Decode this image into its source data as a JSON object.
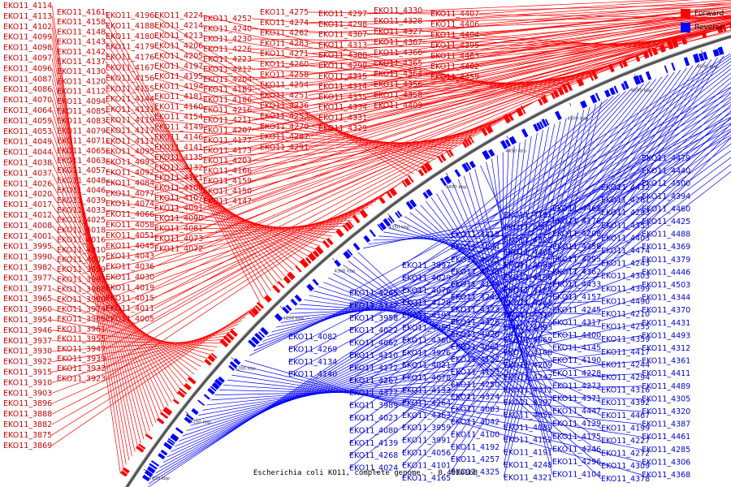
{
  "colors": {
    "forward": "#ff0000",
    "reverse": "#0000ff",
    "backbone": "#555555"
  },
  "legend": {
    "forward_label": "Forward",
    "reverse_label": "Reverse"
  },
  "caption": "Escherichia coli KO11, complete genome. - 0.4920168",
  "ticks": [
    "4100 kbp",
    "4150 kbp",
    "4200 kbp",
    "4250 kbp",
    "4300 kbp",
    "4350 kbp",
    "4400 kbp",
    "4450 kbp",
    "4500 kbp",
    "4550 kbp",
    "4600 kbp",
    "4650 kbp",
    "4700 kbp",
    "4750 kbp"
  ],
  "forward_labels": [
    "EKO11_4114",
    "EKO11_4113",
    "EKO11_4102",
    "EKO11_4099",
    "EKO11_4098",
    "EKO11_4097",
    "EKO11_4096",
    "EKO11_4087",
    "EKO11_4086",
    "EKO11_4070",
    "EKO11_4064",
    "EKO11_4059",
    "EKO11_4053",
    "EKO11_4049",
    "EKO11_4044",
    "EKO11_4038",
    "EKO11_4037",
    "EKO11_4026",
    "EKO11_4020",
    "EKO11_4017",
    "EKO11_4012",
    "EKO11_4008",
    "EKO11_4001",
    "EKO11_3995",
    "EKO11_3990",
    "EKO11_3982",
    "EKO11_3977",
    "EKO11_3971",
    "EKO11_3965",
    "EKO11_3960",
    "EKO11_3954",
    "EKO11_3946",
    "EKO11_3937",
    "EKO11_3930",
    "EKO11_3922",
    "EKO11_3915",
    "EKO11_3910",
    "EKO11_3903",
    "EKO11_3896",
    "EKO11_3888",
    "EKO11_3882",
    "EKO11_3875",
    "EKO11_3869",
    "EKO11_4161",
    "EKO11_4158",
    "EKO11_4148",
    "EKO11_4143",
    "EKO11_4142",
    "EKO11_4137",
    "EKO11_4130",
    "EKO11_4120",
    "EKO11_4112",
    "EKO11_4094",
    "EKO11_4085",
    "EKO11_4083",
    "EKO11_4079",
    "EKO11_4071",
    "EKO11_4065",
    "EKO11_4063",
    "EKO11_4057",
    "EKO11_4048",
    "EKO11_4046",
    "EKO11_4039",
    "EKO11_4033",
    "EKO11_4025",
    "EKO11_4018",
    "EKO11_4016",
    "EKO11_4010",
    "EKO11_4007",
    "EKO11_3999",
    "EKO11_3993",
    "EKO11_3988",
    "EKO11_3980",
    "EKO11_3974",
    "EKO11_3968",
    "EKO11_3961",
    "EKO11_3955",
    "EKO11_3947",
    "EKO11_3939",
    "EKO11_3932",
    "EKO11_3923",
    "EKO11_4196",
    "EKO11_4188",
    "EKO11_4180",
    "EKO11_4179",
    "EKO11_4176",
    "EKO11_4167",
    "EKO11_4156",
    "EKO11_4155",
    "EKO11_4144",
    "EKO11_4131",
    "EKO11_4119",
    "EKO11_4117",
    "EKO11_4111",
    "EKO11_4095",
    "EKO11_4093",
    "EKO11_4092",
    "EKO11_4084",
    "EKO11_4077",
    "EKO11_4074",
    "EKO11_4066",
    "EKO11_4058",
    "EKO11_4051",
    "EKO11_4045",
    "EKO11_4043",
    "EKO11_4036",
    "EKO11_4030",
    "EKO11_4019",
    "EKO11_4015",
    "EKO11_4011",
    "EKO11_4005",
    "EKO11_4224",
    "EKO11_4214",
    "EKO11_4213",
    "EKO11_4206",
    "EKO11_4205",
    "EKO11_4197",
    "EKO11_4195",
    "EKO11_4194",
    "EKO11_4181",
    "EKO11_4160",
    "EKO11_4154",
    "EKO11_4149",
    "EKO11_4146",
    "EKO11_4141",
    "EKO11_4135",
    "EKO11_4132",
    "EKO11_4121",
    "EKO11_4109",
    "EKO11_4107",
    "EKO11_4091",
    "EKO11_4090",
    "EKO11_4081",
    "EKO11_4073",
    "EKO11_4072",
    "EKO11_4252",
    "EKO11_4240",
    "EKO11_4230",
    "EKO11_4226",
    "EKO11_4223",
    "EKO11_4212",
    "EKO11_4204",
    "EKO11_4189",
    "EKO11_4186",
    "EKO11_4216",
    "EKO11_4211",
    "EKO11_4207",
    "EKO11_4177",
    "EKO11_4173",
    "EKO11_4203",
    "EKO11_4166",
    "EKO11_4159",
    "EKO11_4150",
    "EKO11_4147",
    "EKO11_4275",
    "EKO11_4274",
    "EKO11_4262",
    "EKO11_4283",
    "EKO11_4271",
    "EKO11_4260",
    "EKO11_4258",
    "EKO11_4254",
    "EKO11_4251",
    "EKO11_4236",
    "EKO11_4253",
    "EKO11_4270",
    "EKO11_4287",
    "EKO11_4291",
    "EKO11_4297",
    "EKO11_4298",
    "EKO11_4307",
    "EKO11_4313",
    "EKO11_4308",
    "EKO11_4299",
    "EKO11_4315",
    "EKO11_4314",
    "EKO11_4335",
    "EKO11_4334",
    "EKO11_4331",
    "EKO11_4329",
    "EKO11_4330",
    "EKO11_4328",
    "EKO11_4327",
    "EKO11_4367",
    "EKO11_4366",
    "EKO11_4365",
    "EKO11_4364",
    "EKO11_4356",
    "EKO11_4358",
    "EKO11_4409",
    "EKO11_4407",
    "EKO11_4406",
    "EKO11_4404",
    "EKO11_4395",
    "EKO11_4463",
    "EKO11_4462",
    "EKO11_4459"
  ],
  "reverse_labels": [
    "EKO11_4479",
    "EKO11_4440",
    "EKO11_4500",
    "EKO11_4394",
    "EKO11_4460",
    "EKO11_4425",
    "EKO11_4488",
    "EKO11_4369",
    "EKO11_4379",
    "EKO11_4446",
    "EKO11_4503",
    "EKO11_4344",
    "EKO11_4370",
    "EKO11_4431",
    "EKO11_4493",
    "EKO11_4312",
    "EKO11_4361",
    "EKO11_4411",
    "EKO11_4489",
    "EKO11_4305",
    "EKO11_4320",
    "EKO11_4387",
    "EKO11_4461",
    "EKO11_4285",
    "EKO11_4306",
    "EKO11_4368",
    "EKO11_4432",
    "EKO11_4261",
    "EKO11_4293",
    "EKO11_4353",
    "EKO11_4403",
    "EKO11_4474",
    "EKO11_4243",
    "EKO11_4303",
    "EKO11_4399",
    "EKO11_4490",
    "EKO11_4210",
    "EKO11_4255",
    "EKO11_4359",
    "EKO11_4417",
    "EKO11_4244",
    "EKO11_4294",
    "EKO11_4316",
    "EKO11_4392",
    "EKO11_4467",
    "EKO11_4199",
    "EKO11_4227",
    "EKO11_4272",
    "EKO11_4309",
    "EKO11_4378",
    "EKO11_4468",
    "EKO11_4178",
    "EKO11_4208",
    "EKO11_4256",
    "EKO11_4295",
    "EKO11_4362",
    "EKO11_4433",
    "EKO11_4157",
    "EKO11_4245",
    "EKO11_4317",
    "EKO11_4400",
    "EKO11_4145",
    "EKO11_4190",
    "EKO11_4228",
    "EKO11_4273",
    "EKO11_4371",
    "EKO11_4447",
    "EKO11_4129",
    "EKO11_4175",
    "EKO11_4246",
    "EKO11_4296",
    "EKO11_4104",
    "EKO11_4151",
    "EKO11_4200",
    "EKO11_4322",
    "EKO11_4408",
    "EKO11_4088",
    "EKO11_4136",
    "EKO11_4184",
    "EKO11_4263",
    "EKO11_4310",
    "EKO11_4393",
    "EKO11_4069",
    "EKO11_4108",
    "EKO11_4209",
    "EKO11_4247",
    "EKO11_4311",
    "EKO11_4397",
    "EKO11_4052",
    "EKO11_4089",
    "EKO11_4152",
    "EKO11_4191",
    "EKO11_4248",
    "EKO11_4321",
    "EKO11_4415",
    "EKO11_4034",
    "EKO11_4075",
    "EKO11_4138",
    "EKO11_4174",
    "EKO11_4249",
    "EKO11_4323",
    "EKO11_4426",
    "EKO11_4028",
    "EKO11_4061",
    "EKO11_4122",
    "EKO11_4153",
    "EKO11_4250",
    "EKO11_4324",
    "EKO11_4003",
    "EKO11_4042",
    "EKO11_4100",
    "EKO11_4192",
    "EKO11_4257",
    "EKO11_4325",
    "EKO11_3997",
    "EKO11_4029",
    "EKO11_4076",
    "EKO11_4128",
    "EKO11_4193",
    "EKO11_4259",
    "EKO11_4360",
    "EKO11_3976",
    "EKO11_4021",
    "EKO11_4078",
    "EKO11_4133",
    "EKO11_4264",
    "EKO11_4363",
    "EKO11_3959",
    "EKO11_3991",
    "EKO11_4056",
    "EKO11_4101",
    "EKO11_4165",
    "EKO11_4265",
    "EKO11_4372",
    "EKO11_3958",
    "EKO11_4022",
    "EKO11_4062",
    "EKO11_4110",
    "EKO11_4172",
    "EKO11_4267",
    "EKO11_4377",
    "EKO11_3989",
    "EKO11_4023",
    "EKO11_4080",
    "EKO11_4139",
    "EKO11_4268",
    "EKO11_4024",
    "EKO11_4082",
    "EKO11_4269",
    "EKO11_4134",
    "EKO11_4140"
  ]
}
